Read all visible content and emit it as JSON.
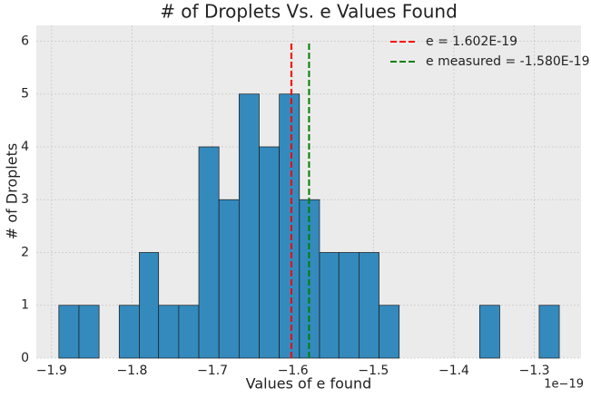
{
  "chart_data": {
    "type": "histogram",
    "title": "# of Droplets Vs. e Values Found",
    "xlabel": "Values of e found",
    "ylabel": "# of Droplets",
    "x_offset_label": "1e−19",
    "bins": [
      -1.891,
      -1.866,
      -1.841,
      -1.816,
      -1.791,
      -1.767,
      -1.742,
      -1.717,
      -1.692,
      -1.667,
      -1.642,
      -1.617,
      -1.592,
      -1.567,
      -1.543,
      -1.518,
      -1.493,
      -1.468,
      -1.443,
      -1.418,
      -1.393,
      -1.368,
      -1.343,
      -1.318,
      -1.294,
      -1.269
    ],
    "values": [
      1,
      1,
      0,
      1,
      2,
      1,
      1,
      4,
      3,
      5,
      4,
      5,
      3,
      2,
      2,
      2,
      1,
      0,
      0,
      0,
      0,
      1,
      0,
      0,
      1
    ],
    "color": "#348abd",
    "edge_color": "#1a1a1a",
    "lines": [
      {
        "name": "e = 1.602E-19",
        "color": "#ff0000",
        "x": -1.602,
        "y_range": [
          0,
          6
        ]
      },
      {
        "name": "e measured = -1.580E-19",
        "color": "#008000",
        "x": -1.58,
        "y_range": [
          0,
          6
        ]
      }
    ],
    "xlim": [
      -1.919,
      -1.242
    ],
    "ylim": [
      0,
      6.3
    ],
    "xticks": [
      {
        "value": -1.9,
        "label": "−1.9"
      },
      {
        "value": -1.8,
        "label": "−1.8"
      },
      {
        "value": -1.7,
        "label": "−1.7"
      },
      {
        "value": -1.6,
        "label": "−1.6"
      },
      {
        "value": -1.5,
        "label": "−1.5"
      },
      {
        "value": -1.4,
        "label": "−1.4"
      },
      {
        "value": -1.3,
        "label": "−1.3"
      }
    ],
    "yticks": [
      0,
      1,
      2,
      3,
      4,
      5,
      6
    ],
    "grid": true,
    "legend_position": "upper-right"
  }
}
